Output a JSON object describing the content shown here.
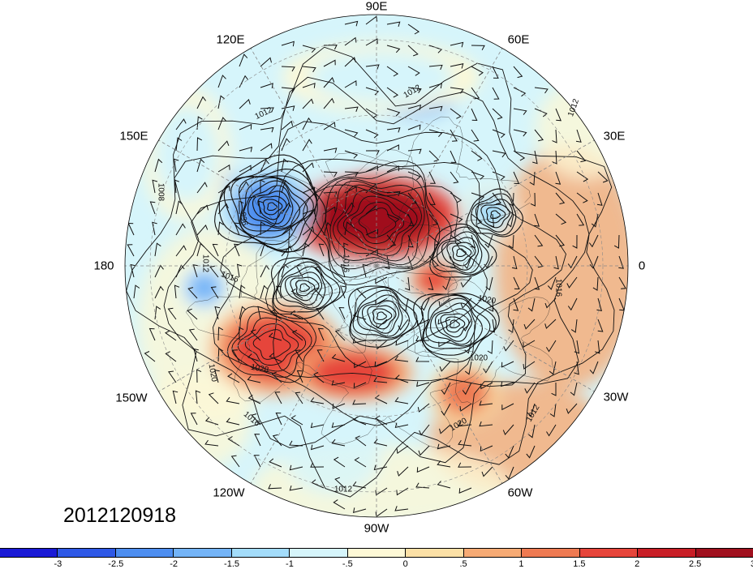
{
  "map": {
    "title": "",
    "projection": "north-polar-stereographic",
    "timestamp": "2012120918",
    "longitude_labels": [
      {
        "key": "90E",
        "text": "90E"
      },
      {
        "key": "60E",
        "text": "60E"
      },
      {
        "key": "30E",
        "text": "30E"
      },
      {
        "key": "0",
        "text": "0"
      },
      {
        "key": "30W",
        "text": "30W"
      },
      {
        "key": "60W",
        "text": "60W"
      },
      {
        "key": "90W",
        "text": "90W"
      },
      {
        "key": "120W",
        "text": "120W"
      },
      {
        "key": "150W",
        "text": "150W"
      },
      {
        "key": "180",
        "text": "180"
      },
      {
        "key": "150E",
        "text": "150E"
      },
      {
        "key": "120E",
        "text": "120E"
      }
    ],
    "contour_labels": [
      {
        "key": "c1012a",
        "text": "1012"
      },
      {
        "key": "c1012b",
        "text": "1012"
      },
      {
        "key": "c1012c",
        "text": "1012"
      },
      {
        "key": "c1012d",
        "text": "1012"
      },
      {
        "key": "c1012e",
        "text": "1012"
      },
      {
        "key": "c1012f",
        "text": "1012"
      },
      {
        "key": "c1008",
        "text": "1008"
      },
      {
        "key": "c1016a",
        "text": "1016"
      },
      {
        "key": "c1016b",
        "text": "1016"
      },
      {
        "key": "c1016c",
        "text": "1016"
      },
      {
        "key": "c1016d",
        "text": "1016"
      },
      {
        "key": "c1020a",
        "text": "1020"
      },
      {
        "key": "c1020b",
        "text": "1020"
      },
      {
        "key": "c1020c",
        "text": "1020"
      },
      {
        "key": "c1020d",
        "text": "1020"
      },
      {
        "key": "c1028",
        "text": "1028"
      },
      {
        "key": "c996",
        "text": "996"
      }
    ],
    "anomaly_centers": [
      {
        "name": "siberia-warm",
        "value": 2.5
      },
      {
        "name": "north-pacific-warm",
        "value": 1.5
      },
      {
        "name": "north-america-warm",
        "value": 1.5
      },
      {
        "name": "north-atlantic-warm",
        "value": 1
      },
      {
        "name": "arctic-warm",
        "value": 1.5
      },
      {
        "name": "aleutian-cold",
        "value": -2.5
      },
      {
        "name": "bering-cold",
        "value": -2
      },
      {
        "name": "east-asia-cold",
        "value": -2
      },
      {
        "name": "far-east-cold",
        "value": -2
      },
      {
        "name": "kara-cold",
        "value": -1.5
      },
      {
        "name": "europe-cold",
        "value": -1
      },
      {
        "name": "pacific-cold",
        "value": -1
      }
    ],
    "low_centers": [
      {
        "name": "aleutian-low",
        "value": 996
      },
      {
        "name": "barents-low",
        "value": 1000
      },
      {
        "name": "canada-low",
        "value": 1004
      },
      {
        "name": "greenland-low",
        "value": 1004
      },
      {
        "name": "atlantic-low",
        "value": 1000
      },
      {
        "name": "chukchi-low",
        "value": 1004
      }
    ],
    "high_centers": [
      {
        "name": "siberian-high",
        "value": 1040
      },
      {
        "name": "pacific-high",
        "value": 1028
      }
    ]
  },
  "colorbar": {
    "colors": [
      "#1a1ad6",
      "#2e58e6",
      "#4d8ef0",
      "#74b4f7",
      "#a3dcfa",
      "#d6f5fb",
      "#fdf8d6",
      "#fbe0a6",
      "#f6aa74",
      "#ee7a52",
      "#e6453b",
      "#c81e26",
      "#a0101e"
    ],
    "tick_labels": [
      "-3",
      "-2.5",
      "-2",
      "-1.5",
      "-1",
      "-.5",
      "0",
      ".5",
      "1",
      "1.5",
      "2",
      "2.5",
      "3"
    ]
  }
}
